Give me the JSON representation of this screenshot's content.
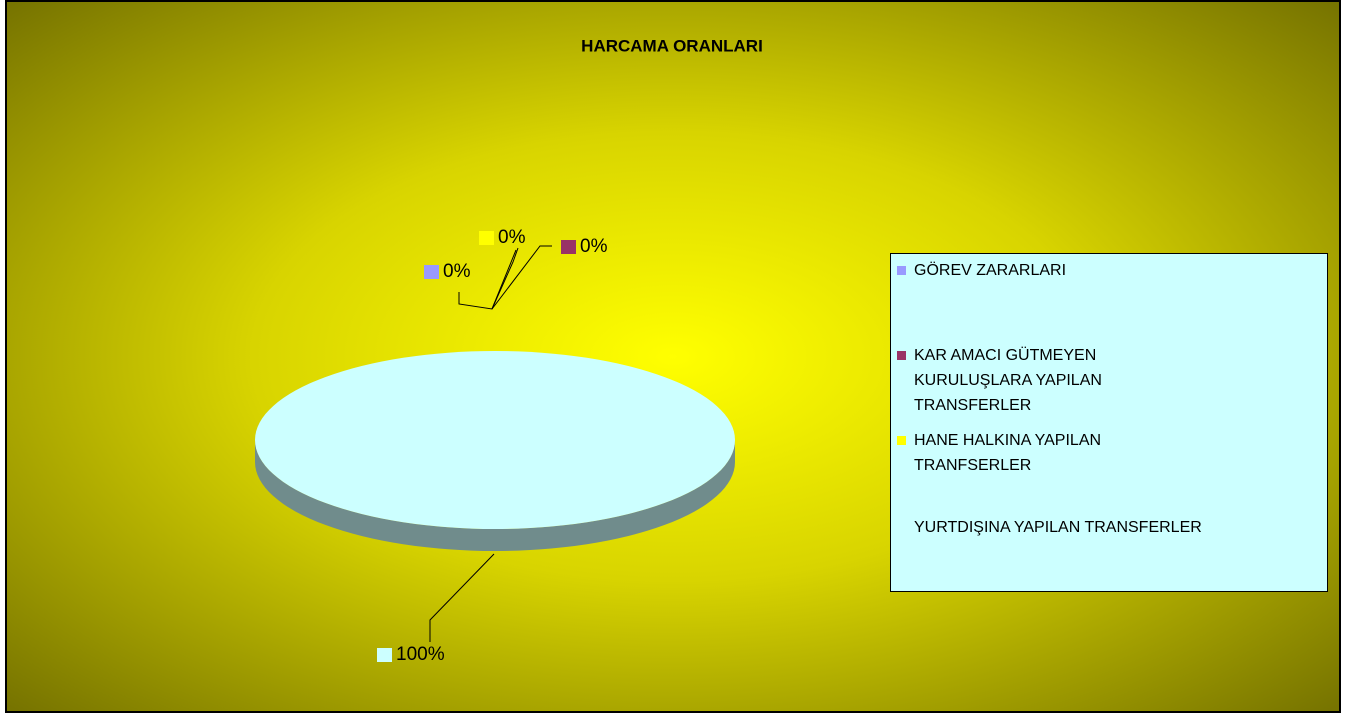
{
  "chart_data": {
    "type": "pie",
    "title": "HARCAMA ORANLARI",
    "categories": [
      "GÖREV ZARARLARI",
      "KAR AMACI GÜTMEYEN KURULUŞLARA YAPILAN TRANSFERLER",
      "HANE HALKINA YAPILAN TRANFSERLER",
      "YURTDIŞINA YAPILAN TRANSFERLER"
    ],
    "values": [
      0,
      0,
      0,
      100
    ],
    "value_labels": [
      "0%",
      "0%",
      "0%",
      "100%"
    ],
    "colors": [
      "#9999ff",
      "#993366",
      "#ffff00",
      "#ccffff"
    ],
    "legend": "right"
  }
}
